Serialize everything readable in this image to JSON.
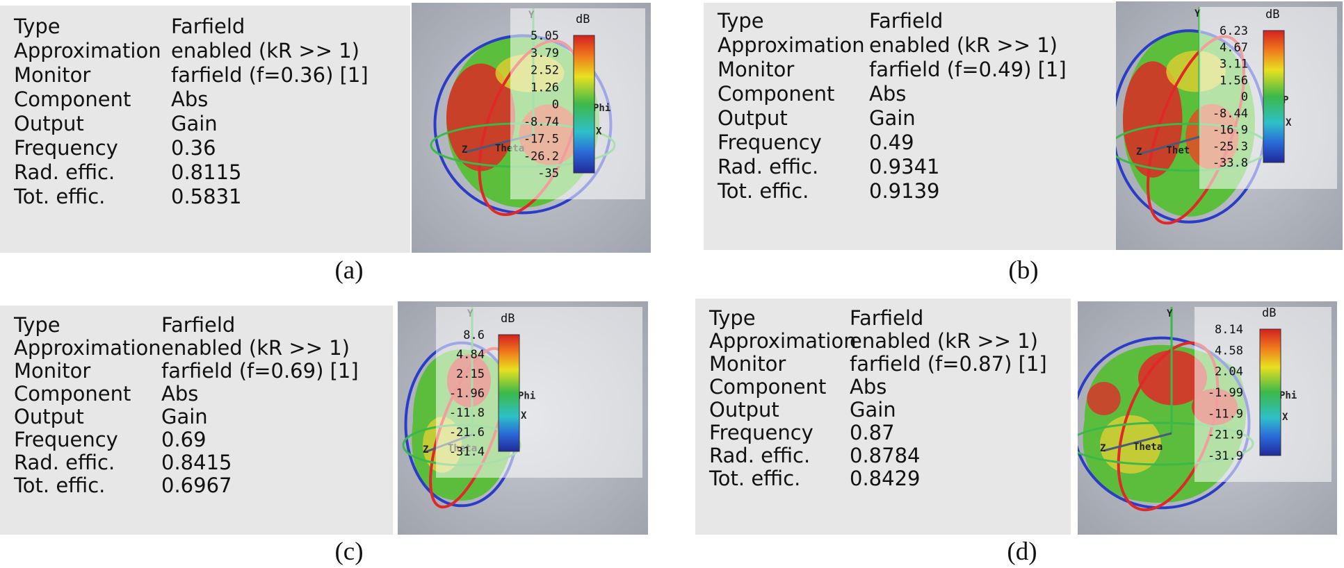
{
  "labels": [
    "Type",
    "Approximation",
    "Monitor",
    "Component",
    "Output",
    "Frequency",
    "Rad. effic.",
    "Tot. effic."
  ],
  "panels": [
    {
      "caption": "(a)",
      "values": [
        "Farfield",
        "enabled (kR >> 1)",
        "farfield (f=0.36) [1]",
        "Abs",
        "Gain",
        "0.36",
        "0.8115",
        "0.5831"
      ],
      "colorbar": {
        "unit": "dB",
        "ticks": [
          "5.05",
          "3.79",
          "2.52",
          "1.26",
          "0",
          "-8.74",
          "-17.5",
          "-26.2",
          "-35"
        ]
      },
      "axes": {
        "y": "Y",
        "z": "Z",
        "theta": "Theta",
        "phi": "Phi",
        "x": "X"
      }
    },
    {
      "caption": "(b)",
      "values": [
        "Farfield",
        "enabled (kR >> 1)",
        "farfield (f=0.49) [1]",
        "Abs",
        "Gain",
        "0.49",
        "0.9341",
        "0.9139"
      ],
      "colorbar": {
        "unit": "dB",
        "ticks": [
          "6.23",
          "4.67",
          "3.11",
          "1.56",
          "0",
          "-8.44",
          "-16.9",
          "-25.3",
          "-33.8"
        ]
      },
      "axes": {
        "y": "Y",
        "z": "Z",
        "theta": "Thet",
        "phi": "P",
        "x": "X"
      }
    },
    {
      "caption": "(c)",
      "values": [
        "Farfield",
        "enabled (kR >> 1)",
        "farfield (f=0.69) [1]",
        "Abs",
        "Gain",
        "0.69",
        "0.8415",
        "0.6967"
      ],
      "colorbar": {
        "unit": "dB",
        "ticks": [
          "8.6",
          "4.84",
          "2.15",
          "-1.96",
          "-11.8",
          "-21.6",
          "-31.4"
        ]
      },
      "axes": {
        "y": "Y",
        "z": "Z",
        "theta": "Theta",
        "phi": "Phi",
        "x": "X"
      }
    },
    {
      "caption": "(d)",
      "values": [
        "Farfield",
        "enabled (kR >> 1)",
        "farfield (f=0.87) [1]",
        "Abs",
        "Gain",
        "0.87",
        "0.8784",
        "0.8429"
      ],
      "colorbar": {
        "unit": "dB",
        "ticks": [
          "8.14",
          "4.58",
          "2.04",
          "-1.99",
          "-11.9",
          "-21.9",
          "-31.9"
        ]
      },
      "axes": {
        "y": "Y",
        "z": "Z",
        "theta": "Theta",
        "phi": "Phi",
        "x": "X"
      }
    }
  ]
}
